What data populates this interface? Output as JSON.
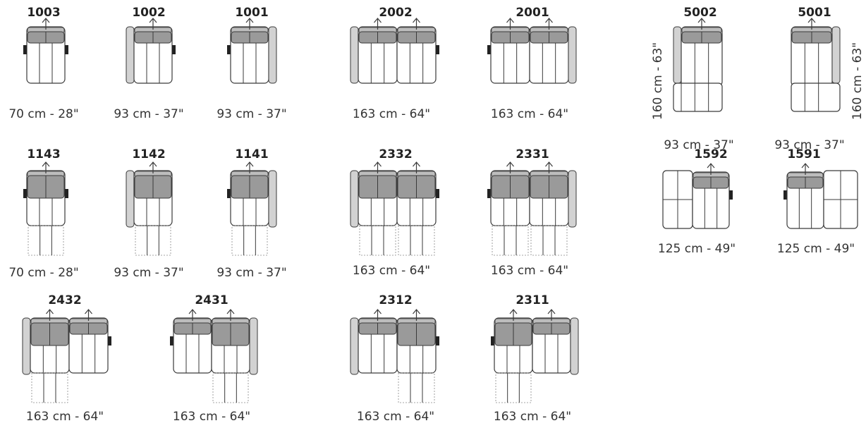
{
  "modules": [
    {
      "code": "1003",
      "dimension": "70 cm - 28\""
    },
    {
      "code": "1002",
      "dimension": "93 cm - 37\""
    },
    {
      "code": "1001",
      "dimension": "93 cm - 37\""
    },
    {
      "code": "2002",
      "dimension": "163 cm - 64\""
    },
    {
      "code": "2001",
      "dimension": "163 cm - 64\""
    },
    {
      "code": "5002",
      "dimension": "93 cm - 37\"",
      "depth": "160 cm - 63\""
    },
    {
      "code": "5001",
      "dimension": "93 cm - 37\"",
      "depth": "160 cm - 63\""
    },
    {
      "code": "1143",
      "dimension": "70 cm - 28\""
    },
    {
      "code": "1142",
      "dimension": "93 cm - 37\""
    },
    {
      "code": "1141",
      "dimension": "93 cm - 37\""
    },
    {
      "code": "2332",
      "dimension": "163 cm - 64\""
    },
    {
      "code": "2331",
      "dimension": "163 cm - 64\""
    },
    {
      "code": "1592",
      "dimension": "125 cm - 49\""
    },
    {
      "code": "1591",
      "dimension": "125 cm - 49\""
    },
    {
      "code": "2432",
      "dimension": "163 cm - 64\""
    },
    {
      "code": "2431",
      "dimension": "163 cm - 64\""
    },
    {
      "code": "2312",
      "dimension": "163 cm - 64\""
    },
    {
      "code": "2311",
      "dimension": "163 cm - 64\""
    }
  ],
  "colors": {
    "outline": "#3a3a3a",
    "seat_fill": "#ffffff",
    "headrest_fill": "#9a9a9a",
    "arm_fill": "#d2d2d2",
    "handle_fill": "#222222",
    "extension_line": "#888888"
  }
}
